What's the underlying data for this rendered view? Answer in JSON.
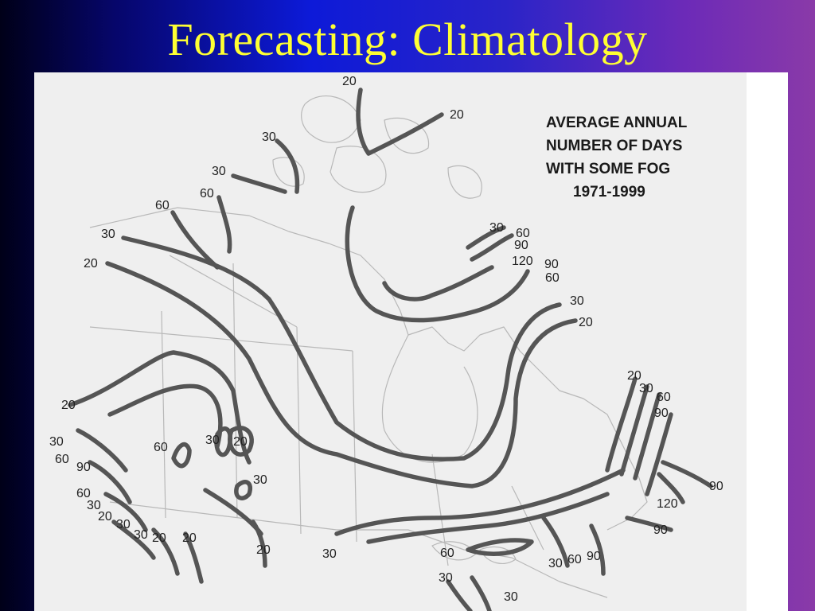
{
  "slide": {
    "title": "Forecasting: Climatology"
  },
  "map": {
    "title_lines": [
      "AVERAGE ANNUAL",
      "NUMBER OF DAYS",
      "WITH SOME FOG",
      "1971-1999"
    ],
    "colors": {
      "isoline": "#555555",
      "boundary": "#b8b8b8",
      "panel": "#efefef",
      "title": "#ffff33"
    },
    "labels": [
      {
        "id": "l01",
        "text": "20"
      },
      {
        "id": "l02",
        "text": "20"
      },
      {
        "id": "l03",
        "text": "30"
      },
      {
        "id": "l04",
        "text": "30"
      },
      {
        "id": "l05",
        "text": "60"
      },
      {
        "id": "l06",
        "text": "60"
      },
      {
        "id": "l07",
        "text": "30"
      },
      {
        "id": "l08",
        "text": "20"
      },
      {
        "id": "l09",
        "text": "30"
      },
      {
        "id": "l10",
        "text": "60"
      },
      {
        "id": "l11",
        "text": "90"
      },
      {
        "id": "l12",
        "text": "120"
      },
      {
        "id": "l13",
        "text": "90"
      },
      {
        "id": "l14",
        "text": "60"
      },
      {
        "id": "l15",
        "text": "30"
      },
      {
        "id": "l16",
        "text": "20"
      },
      {
        "id": "l17",
        "text": "20"
      },
      {
        "id": "l18",
        "text": "30"
      },
      {
        "id": "l19",
        "text": "60"
      },
      {
        "id": "l20",
        "text": "90"
      },
      {
        "id": "l21",
        "text": "20"
      },
      {
        "id": "l22",
        "text": "30"
      },
      {
        "id": "l23",
        "text": "60"
      },
      {
        "id": "l24",
        "text": "90"
      },
      {
        "id": "l25",
        "text": "60"
      },
      {
        "id": "l26",
        "text": "30"
      },
      {
        "id": "l27",
        "text": "20"
      },
      {
        "id": "l28",
        "text": "30"
      },
      {
        "id": "l29",
        "text": "30"
      },
      {
        "id": "l30",
        "text": "20"
      },
      {
        "id": "l31",
        "text": "20"
      },
      {
        "id": "l32",
        "text": "60"
      },
      {
        "id": "l33",
        "text": "30"
      },
      {
        "id": "l34",
        "text": "20"
      },
      {
        "id": "l35",
        "text": "30"
      },
      {
        "id": "l36",
        "text": "20"
      },
      {
        "id": "l37",
        "text": "30"
      },
      {
        "id": "l38",
        "text": "60"
      },
      {
        "id": "l39",
        "text": "30"
      },
      {
        "id": "l40",
        "text": "30"
      },
      {
        "id": "l41",
        "text": "30"
      },
      {
        "id": "l42",
        "text": "60"
      },
      {
        "id": "l43",
        "text": "90"
      },
      {
        "id": "l44",
        "text": "90"
      },
      {
        "id": "l45",
        "text": "120"
      },
      {
        "id": "l46",
        "text": "90"
      }
    ]
  }
}
